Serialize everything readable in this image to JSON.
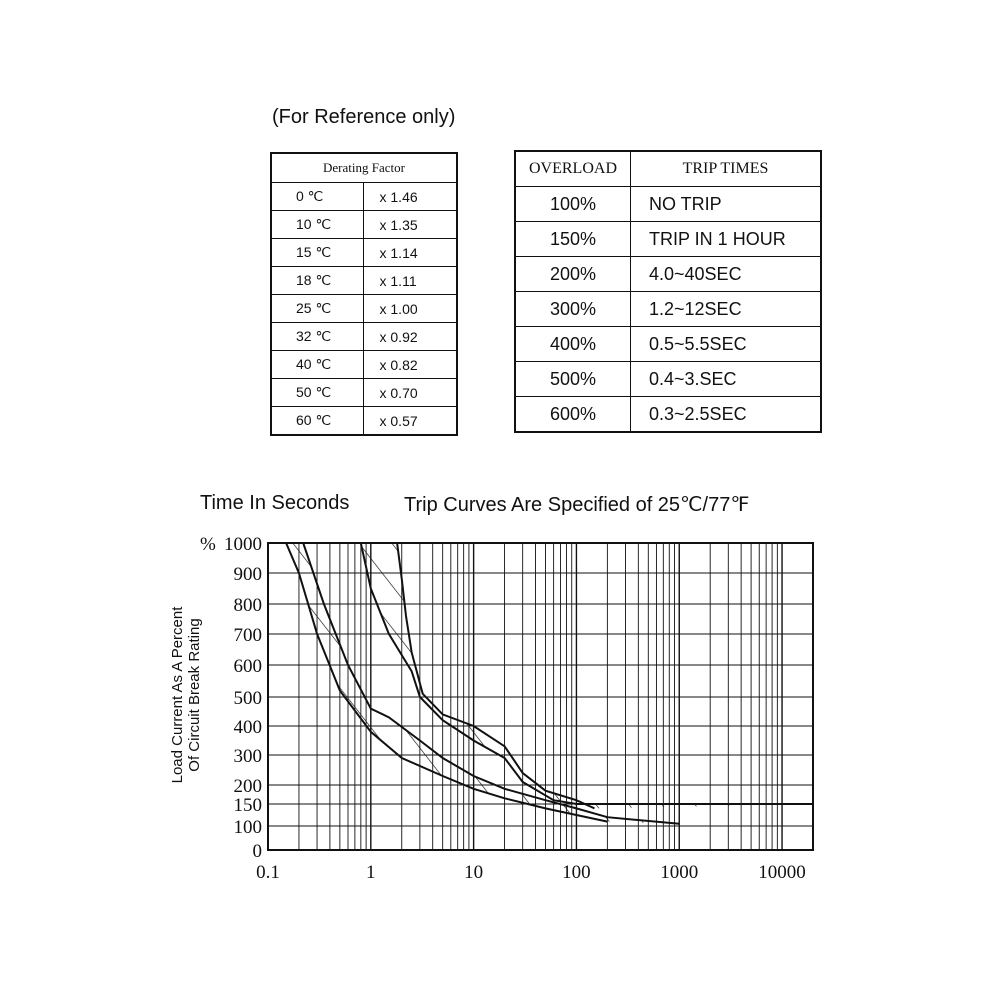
{
  "reference_note": "(For Reference only)",
  "derating": {
    "header": "Derating Factor",
    "rows": [
      {
        "temp": "0 ℃",
        "factor": "x 1.46"
      },
      {
        "temp": "10 ℃",
        "factor": "x 1.35"
      },
      {
        "temp": "15 ℃",
        "factor": "x 1.14"
      },
      {
        "temp": "18 ℃",
        "factor": "x 1.11"
      },
      {
        "temp": "25 ℃",
        "factor": "x 1.00"
      },
      {
        "temp": "32 ℃",
        "factor": "x 0.92"
      },
      {
        "temp": "40 ℃",
        "factor": "x 0.82"
      },
      {
        "temp": "50 ℃",
        "factor": "x 0.70"
      },
      {
        "temp": "60 ℃",
        "factor": "x 0.57"
      }
    ]
  },
  "trip_table": {
    "headers": [
      "OVERLOAD",
      "TRIP TIMES"
    ],
    "rows": [
      {
        "overload": "100%",
        "trip": "NO TRIP"
      },
      {
        "overload": "150%",
        "trip": "TRIP IN 1 HOUR"
      },
      {
        "overload": "200%",
        "trip": "4.0~40SEC"
      },
      {
        "overload": "300%",
        "trip": "1.2~12SEC"
      },
      {
        "overload": "400%",
        "trip": "0.5~5.5SEC"
      },
      {
        "overload": "500%",
        "trip": "0.4~3.SEC"
      },
      {
        "overload": "600%",
        "trip": "0.3~2.5SEC"
      }
    ]
  },
  "chart_data": {
    "type": "line",
    "header_left": "Time In Seconds",
    "header_right": "Trip Curves Are Specified of 25℃/77℉",
    "ylabel_line1": "Load Current As A Percent",
    "ylabel_line2": "Of Circuit Break Rating",
    "y_prefix": "%",
    "x_scale": "log",
    "xlim": [
      0.1,
      20000
    ],
    "ylim": [
      0,
      1000
    ],
    "x_ticks": [
      "0.1",
      "1",
      "10",
      "100",
      "1000",
      "10000"
    ],
    "x_tick_values": [
      0.1,
      1,
      10,
      100,
      1000,
      10000
    ],
    "y_ticks": [
      "1000",
      "900",
      "800",
      "700",
      "600",
      "500",
      "400",
      "300",
      "200",
      "150",
      "100",
      "0"
    ],
    "y_tick_values": [
      1000,
      900,
      800,
      700,
      600,
      500,
      400,
      300,
      200,
      150,
      100,
      0
    ],
    "grid": true,
    "band_hatched": true,
    "series": [
      {
        "x": [
          0.15,
          0.2,
          0.3,
          0.5,
          1,
          2,
          5,
          10,
          20,
          50,
          100,
          200
        ],
        "y": [
          1000,
          900,
          700,
          520,
          380,
          290,
          230,
          190,
          165,
          140,
          125,
          110
        ]
      },
      {
        "x": [
          0.22,
          0.35,
          0.6,
          1,
          1.5,
          3,
          5,
          10,
          20,
          50,
          100,
          200,
          1000
        ],
        "y": [
          1000,
          800,
          600,
          460,
          430,
          350,
          290,
          230,
          190,
          160,
          140,
          120,
          105
        ]
      },
      {
        "x": [
          0.8,
          1,
          1.5,
          2.5,
          3,
          5,
          10,
          20,
          30,
          60,
          100,
          200,
          400,
          1000,
          20000
        ],
        "y": [
          1000,
          850,
          700,
          580,
          500,
          420,
          350,
          290,
          210,
          160,
          150,
          150,
          150,
          150,
          150
        ]
      },
      {
        "x": [
          1.8,
          2,
          2.2,
          2.5,
          3.2,
          5,
          10,
          20,
          30,
          50,
          100,
          150
        ],
        "y": [
          1000,
          880,
          760,
          640,
          510,
          440,
          400,
          330,
          240,
          185,
          160,
          140
        ]
      }
    ]
  }
}
